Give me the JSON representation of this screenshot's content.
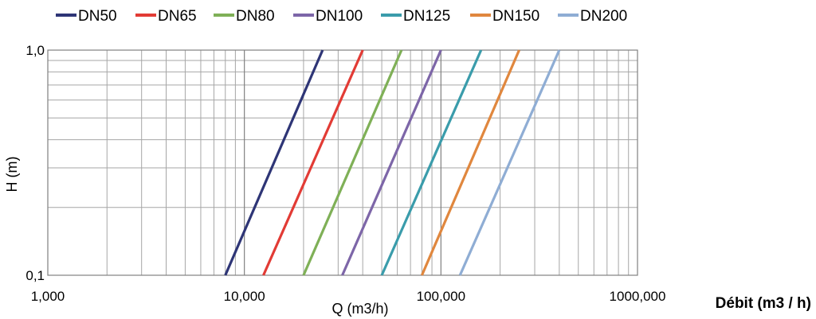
{
  "chart_data": {
    "type": "line",
    "x_scale": "log",
    "y_scale": "log",
    "xlim": [
      1000,
      1000000
    ],
    "ylim": [
      0.1,
      1.0
    ],
    "x_ticks": [
      "1,000",
      "10,000",
      "100,000",
      "1000,000"
    ],
    "y_ticks": [
      "0,1",
      "1,0"
    ],
    "xlabel": "Q (m3/h)",
    "ylabel": "H (m)",
    "side_label": "Débit (m3 / h)",
    "grid": true,
    "legend_position": "top",
    "series": [
      {
        "name": "DN50",
        "color": "#2e3576",
        "x": [
          8000,
          25000
        ],
        "y": [
          0.1,
          1.0
        ]
      },
      {
        "name": "DN65",
        "color": "#e23b35",
        "x": [
          12500,
          40000
        ],
        "y": [
          0.1,
          1.0
        ]
      },
      {
        "name": "DN80",
        "color": "#7fb057",
        "x": [
          20000,
          63000
        ],
        "y": [
          0.1,
          1.0
        ]
      },
      {
        "name": "DN100",
        "color": "#7d66a8",
        "x": [
          31500,
          100000
        ],
        "y": [
          0.1,
          1.0
        ]
      },
      {
        "name": "DN125",
        "color": "#3a9cab",
        "x": [
          50000,
          160000
        ],
        "y": [
          0.1,
          1.0
        ]
      },
      {
        "name": "DN150",
        "color": "#e0873e",
        "x": [
          80000,
          250000
        ],
        "y": [
          0.1,
          1.0
        ]
      },
      {
        "name": "DN200",
        "color": "#8fadd4",
        "x": [
          125000,
          400000
        ],
        "y": [
          0.1,
          1.0
        ]
      }
    ]
  }
}
